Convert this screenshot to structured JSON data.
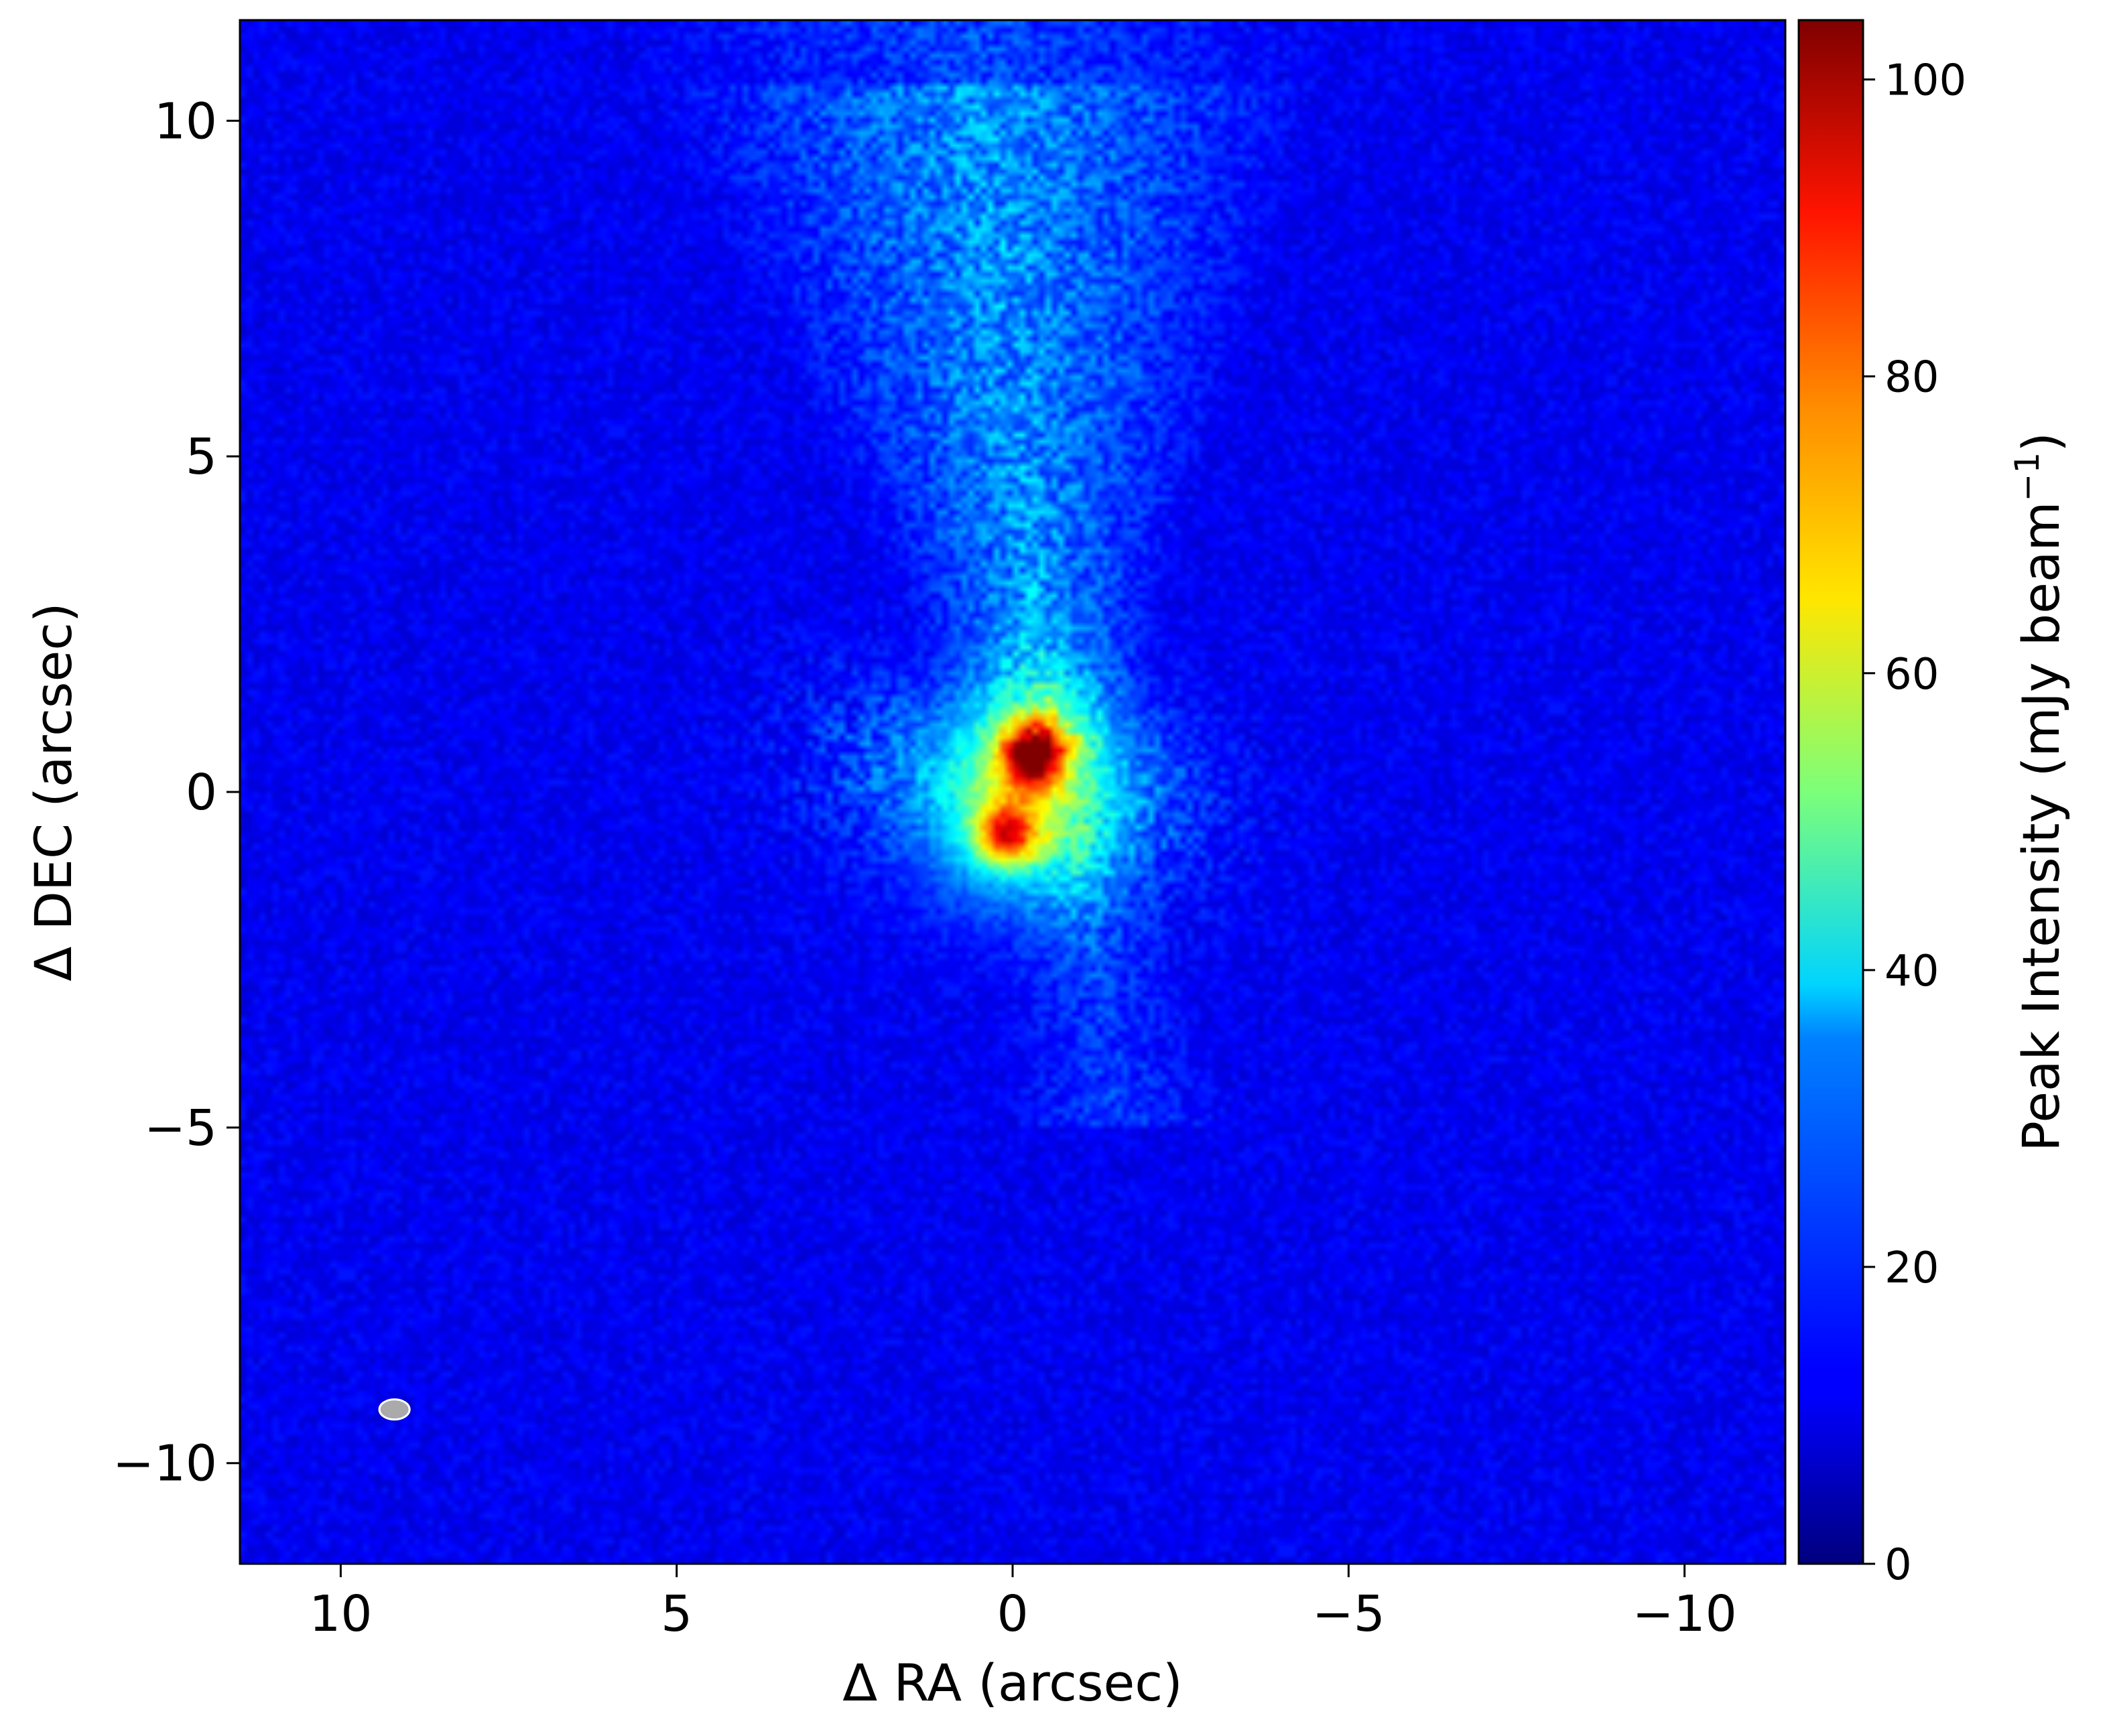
{
  "chart_data": {
    "type": "heatmap",
    "title": "",
    "xlabel": "Δ RA (arcsec)",
    "ylabel": "Δ DEC (arcsec)",
    "xlim": [
      11.5,
      -11.5
    ],
    "ylim": [
      -11.5,
      11.5
    ],
    "x_ticks": [
      10,
      5,
      0,
      -5,
      -10
    ],
    "y_ticks": [
      10,
      5,
      0,
      -5,
      -10
    ],
    "x_tick_labels": [
      "10",
      "5",
      "0",
      "−5",
      "−10"
    ],
    "y_tick_labels": [
      "10",
      "5",
      "0",
      "−5",
      "−10"
    ],
    "grid": false,
    "colormap": "jet",
    "colorbar": {
      "label": "Peak Intensity (mJy beam",
      "label_exponent": "−1",
      "label_close": ")",
      "range": [
        0,
        104
      ],
      "ticks": [
        0,
        20,
        40,
        60,
        80,
        100
      ],
      "tick_labels": [
        "0",
        "20",
        "40",
        "60",
        "80",
        "100"
      ]
    },
    "background_level": 11,
    "sources": [
      {
        "ra": -0.3,
        "dec": 0.55,
        "peak": 100
      },
      {
        "ra": 0.1,
        "dec": -0.65,
        "peak": 88
      }
    ],
    "beam": {
      "ra": 9.2,
      "dec": -9.2,
      "major": 0.45,
      "minor": 0.3,
      "color": "#aaaaaa"
    }
  }
}
